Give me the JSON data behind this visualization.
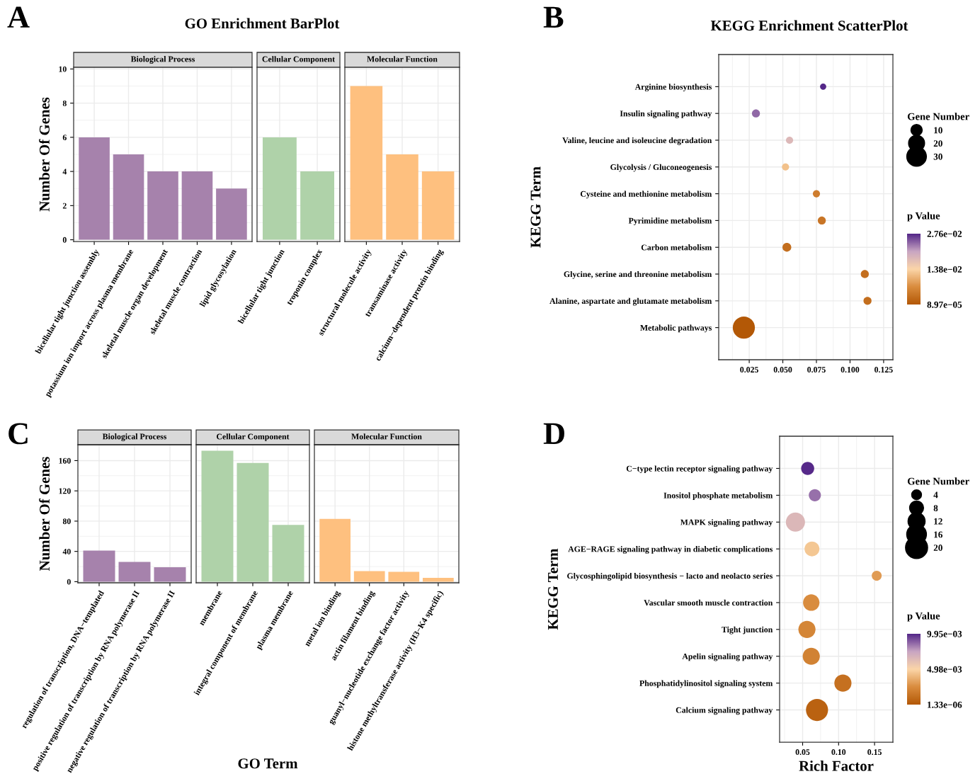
{
  "chart_data": [
    {
      "type": "bar",
      "title": "Biological Process",
      "ylabel": "Number Of Genes",
      "annotations": [
        "A",
        "GO Enrichment BarPlot"
      ],
      "categories": [
        "bicellular tight junction assembly",
        "potassium ion import across plasma membrane",
        "skeletal muscle organ development",
        "skeletal muscle contraction",
        "lipid glycosylation"
      ],
      "values": [
        6,
        5,
        4,
        4,
        3
      ],
      "color": "#a682ac",
      "ylim": [
        -0.1,
        10.1
      ],
      "yticks": [
        0,
        2,
        4,
        6,
        8,
        10
      ],
      "grid": true
    },
    {
      "type": "bar",
      "title": "Cellular Component",
      "categories": [
        "bicellular tight junction",
        "troponin complex"
      ],
      "values": [
        6,
        4
      ],
      "color": "#afd2a9",
      "ylim": [
        -0.1,
        10.1
      ],
      "yticks": [
        0,
        2,
        4,
        6,
        8,
        10
      ],
      "grid": true,
      "tick_labels": "x"
    },
    {
      "type": "bar",
      "title": "Molecular Function",
      "categories": [
        "structural molecule activity",
        "transaminase activity",
        "calcium−dependent protein binding"
      ],
      "values": [
        9,
        5,
        4
      ],
      "color": "#fec07f",
      "ylim": [
        -0.1,
        10.1
      ],
      "yticks": [
        0,
        2,
        4,
        6,
        8,
        10
      ],
      "grid": true,
      "tick_labels": "x"
    },
    {
      "type": "bubble",
      "title": "KEGG Enrichment ScatterPlot",
      "ylabel": "KEGG Term",
      "annotations": [
        "B"
      ],
      "orientation": "horizontal",
      "categories": [
        "Arginine biosynthesis",
        "Insulin signaling pathway",
        "Valine, leucine and isoleucine degradation",
        "Glycolysis / Gluconeogenesis",
        "Cysteine and methionine metabolism",
        "Pyrimidine metabolism",
        "Carbon metabolism",
        "Glycine, serine and threonine metabolism",
        "Alanine, aspartate and glutamate metabolism",
        "Metabolic pathways"
      ],
      "values": [
        0.08,
        0.03,
        0.055,
        0.052,
        0.075,
        0.079,
        0.053,
        0.111,
        0.113,
        0.021
      ],
      "sizes": [
        3,
        5,
        4,
        4,
        4,
        5,
        6,
        5,
        5,
        38
      ],
      "cvalues": [
        0.0276,
        0.024,
        0.018,
        0.012,
        0.005,
        0.004,
        0.003,
        0.003,
        0.003,
        0.0001
      ],
      "size_legend": [
        10,
        20,
        30
      ],
      "legend_title": "Gene Number",
      "clabel": "p Value",
      "clim": [
        8.97e-05,
        0.0276
      ],
      "cticks": [
        {
          "value": 8.97e-05,
          "label": "8.97e−05"
        },
        {
          "value": 0.0138,
          "label": "1.38e−02"
        },
        {
          "value": 0.0276,
          "label": "2.76e−02"
        }
      ],
      "xlim": [
        0.0023,
        0.1319
      ],
      "xticks": [
        0.025,
        {
          "value": 0.05,
          "label": "0.050"
        },
        0.075,
        {
          "value": 0.1,
          "label": "0.100"
        },
        0.125
      ],
      "grid": true
    },
    {
      "type": "bar",
      "title": "Biological Process",
      "ylabel": "Number Of Genes",
      "annotations": [
        "C"
      ],
      "categories": [
        "regulation of transcription, DNA−templated",
        "positive regulation of transcription by RNA polymerase II",
        "negative regulation of transcription by RNA polymerase II"
      ],
      "values": [
        41,
        26,
        19
      ],
      "color": "#a682ac",
      "ylim": [
        -1.5,
        181
      ],
      "yticks": [
        0,
        40,
        80,
        120,
        160
      ],
      "grid": true
    },
    {
      "type": "bar",
      "title": "Cellular Component",
      "xlabel": "GO Term",
      "categories": [
        "membrane",
        "integral component of membrane",
        "plasma membrane"
      ],
      "values": [
        173,
        157,
        75
      ],
      "color": "#afd2a9",
      "ylim": [
        -1.5,
        181
      ],
      "yticks": [
        0,
        40,
        80,
        120,
        160
      ],
      "grid": true,
      "tick_labels": "x"
    },
    {
      "type": "bar",
      "title": "Molecular Function",
      "categories": [
        "metal ion binding",
        "actin filament binding",
        "guanyl−nucleotide exchange factor activity",
        "histone methyltransferase activity (H3−K4 specific)"
      ],
      "values": [
        83,
        14,
        13,
        5
      ],
      "color": "#fec07f",
      "ylim": [
        -1.5,
        181
      ],
      "yticks": [
        0,
        40,
        80,
        120,
        160
      ],
      "grid": true,
      "tick_labels": "x"
    },
    {
      "type": "bubble",
      "xlabel": "Rich Factor",
      "ylabel": "KEGG Term",
      "annotations": [
        "D"
      ],
      "orientation": "horizontal",
      "categories": [
        "C−type lectin receptor signaling pathway",
        "Inositol phosphate metabolism",
        "MAPK signaling pathway",
        "AGE−RAGE signaling pathway in diabetic complications",
        "Glycosphingolipid biosynthesis − lacto and neolacto series",
        "Vascular smooth muscle contraction",
        "Tight junction",
        "Apelin signaling pathway",
        "Phosphatidylinositol signaling system",
        "Calcium signaling pathway"
      ],
      "values": [
        0.057,
        0.067,
        0.04,
        0.063,
        0.153,
        0.062,
        0.056,
        0.062,
        0.106,
        0.07
      ],
      "sizes": [
        7,
        6,
        15,
        9,
        4,
        11,
        12,
        12,
        12,
        20
      ],
      "cvalues": [
        0.0099,
        0.0085,
        0.0065,
        0.0045,
        0.003,
        0.0025,
        0.0022,
        0.002,
        0.0012,
        0.0005
      ],
      "size_legend": [
        4,
        8,
        12,
        16,
        20
      ],
      "legend_title": "Gene Number",
      "clabel": "p Value",
      "clim": [
        1.33e-06,
        0.00995
      ],
      "cticks": [
        {
          "value": 1.33e-06,
          "label": "1.33e−06"
        },
        {
          "value": 0.00498,
          "label": "4.98e−03"
        },
        {
          "value": 0.00995,
          "label": "9.95e−03"
        }
      ],
      "xlim": [
        0.018,
        0.1755
      ],
      "xticks": [
        0.05,
        {
          "value": 0.1,
          "label": "0.10"
        },
        {
          "value": 0.15,
          "label": "0.15"
        }
      ],
      "grid": true
    }
  ]
}
